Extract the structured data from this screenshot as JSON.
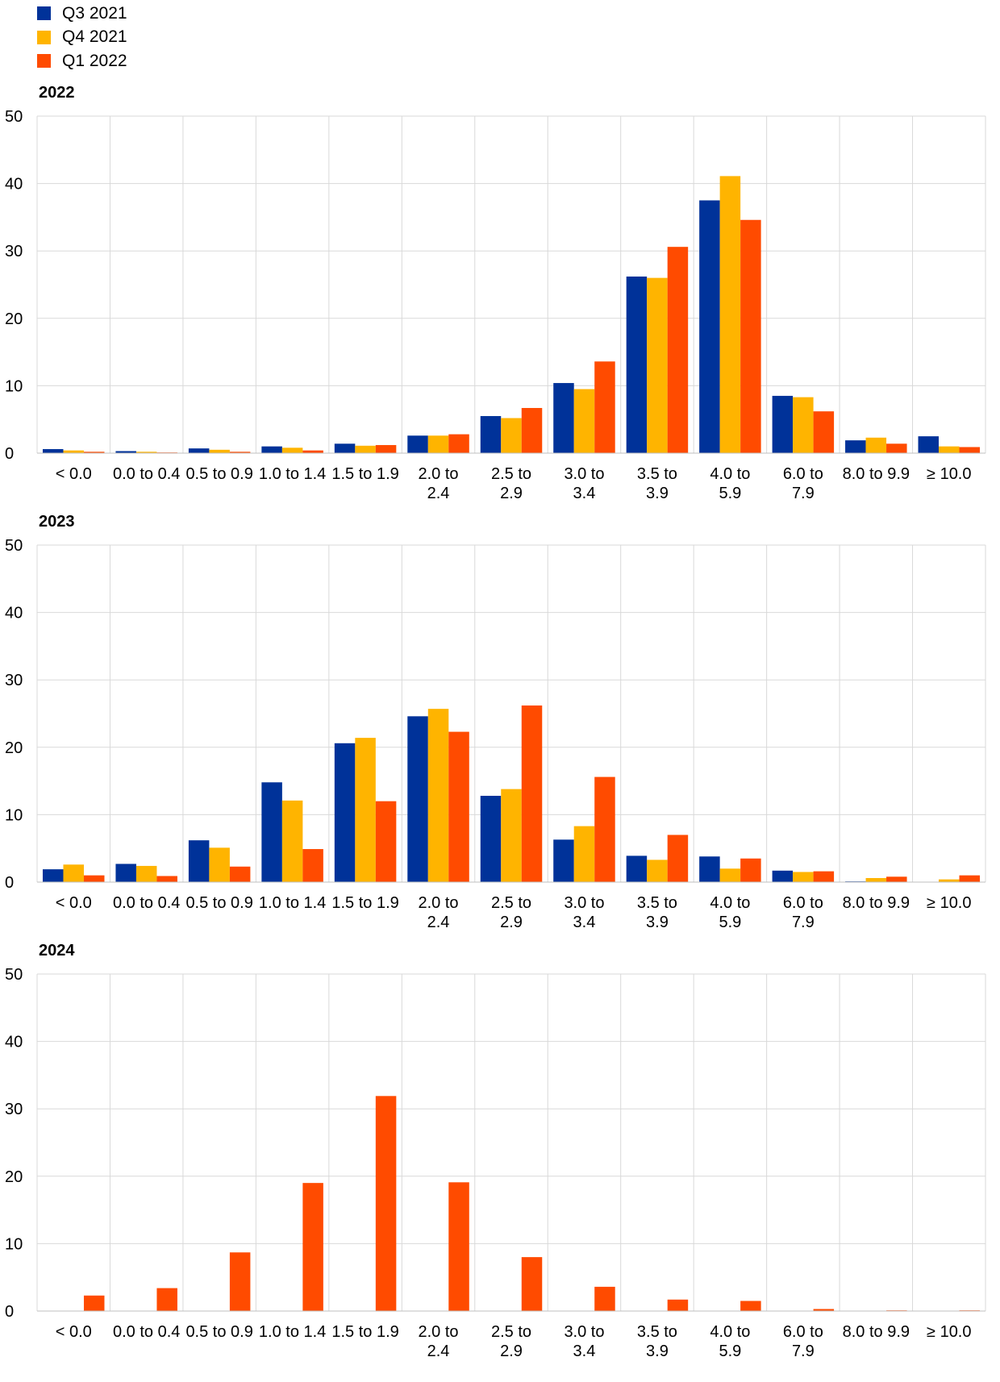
{
  "colors": {
    "Q3 2021": "#003299",
    "Q4 2021": "#FFB400",
    "Q1 2022": "#FF4B00",
    "grid": "#d9d9d9"
  },
  "legend": [
    {
      "label": "Q3 2021",
      "color": "#003299"
    },
    {
      "label": "Q4 2021",
      "color": "#FFB400"
    },
    {
      "label": "Q1 2022",
      "color": "#FF4B00"
    }
  ],
  "chart_data": [
    {
      "type": "bar",
      "title": "2022",
      "categories": [
        "< 0.0",
        "0.0 to 0.4",
        "0.5 to 0.9",
        "1.0 to 1.4",
        "1.5 to 1.9",
        "2.0 to 2.4",
        "2.5 to 2.9",
        "3.0 to 3.4",
        "3.5 to 3.9",
        "4.0 to 5.9",
        "6.0 to 7.9",
        "8.0 to 9.9",
        "≥ 10.0"
      ],
      "yticks": [
        "0",
        "10",
        "20",
        "30",
        "40",
        "50"
      ],
      "ylim": [
        0,
        50
      ],
      "grid": true,
      "series": [
        {
          "name": "Q3 2021",
          "values": [
            0.6,
            0.3,
            0.7,
            1.0,
            1.4,
            2.6,
            5.5,
            10.4,
            26.2,
            37.5,
            8.5,
            1.9,
            2.5
          ]
        },
        {
          "name": "Q4 2021",
          "values": [
            0.4,
            0.2,
            0.5,
            0.8,
            1.1,
            2.6,
            5.2,
            9.5,
            26.0,
            41.1,
            8.3,
            2.3,
            1.0
          ]
        },
        {
          "name": "Q1 2022",
          "values": [
            0.2,
            0.1,
            0.2,
            0.4,
            1.2,
            2.8,
            6.7,
            13.6,
            30.6,
            34.6,
            6.2,
            1.4,
            0.9
          ]
        }
      ]
    },
    {
      "type": "bar",
      "title": "2023",
      "categories": [
        "< 0.0",
        "0.0 to 0.4",
        "0.5 to 0.9",
        "1.0 to 1.4",
        "1.5 to 1.9",
        "2.0 to 2.4",
        "2.5 to 2.9",
        "3.0 to 3.4",
        "3.5 to 3.9",
        "4.0 to 5.9",
        "6.0 to 7.9",
        "8.0 to 9.9",
        "≥ 10.0"
      ],
      "yticks": [
        "0",
        "10",
        "20",
        "30",
        "40",
        "50"
      ],
      "ylim": [
        0,
        50
      ],
      "grid": true,
      "series": [
        {
          "name": "Q3 2021",
          "values": [
            1.9,
            2.7,
            6.2,
            14.8,
            20.6,
            24.6,
            12.8,
            6.3,
            3.9,
            3.8,
            1.7,
            0.1,
            0.0
          ]
        },
        {
          "name": "Q4 2021",
          "values": [
            2.6,
            2.4,
            5.1,
            12.1,
            21.4,
            25.7,
            13.8,
            8.3,
            3.3,
            2.0,
            1.5,
            0.6,
            0.4
          ]
        },
        {
          "name": "Q1 2022",
          "values": [
            1.0,
            0.9,
            2.3,
            4.9,
            12.0,
            22.3,
            26.2,
            15.6,
            7.0,
            3.5,
            1.6,
            0.8,
            1.0
          ]
        }
      ]
    },
    {
      "type": "bar",
      "title": "2024",
      "categories": [
        "< 0.0",
        "0.0 to 0.4",
        "0.5 to 0.9",
        "1.0 to 1.4",
        "1.5 to 1.9",
        "2.0 to 2.4",
        "2.5 to 2.9",
        "3.0 to 3.4",
        "3.5 to 3.9",
        "4.0 to 5.9",
        "6.0 to 7.9",
        "8.0 to 9.9",
        "≥ 10.0"
      ],
      "yticks": [
        "0",
        "10",
        "20",
        "30",
        "40",
        "50"
      ],
      "ylim": [
        0,
        50
      ],
      "grid": true,
      "series": [
        {
          "name": "Q3 2021",
          "values": [
            0,
            0,
            0,
            0,
            0,
            0,
            0,
            0,
            0,
            0,
            0,
            0,
            0
          ]
        },
        {
          "name": "Q4 2021",
          "values": [
            0,
            0,
            0,
            0,
            0,
            0,
            0,
            0,
            0,
            0,
            0,
            0,
            0
          ]
        },
        {
          "name": "Q1 2022",
          "values": [
            2.3,
            3.4,
            8.7,
            19.0,
            31.9,
            19.1,
            8.0,
            3.6,
            1.7,
            1.5,
            0.3,
            0.1,
            0.1
          ]
        }
      ]
    }
  ]
}
